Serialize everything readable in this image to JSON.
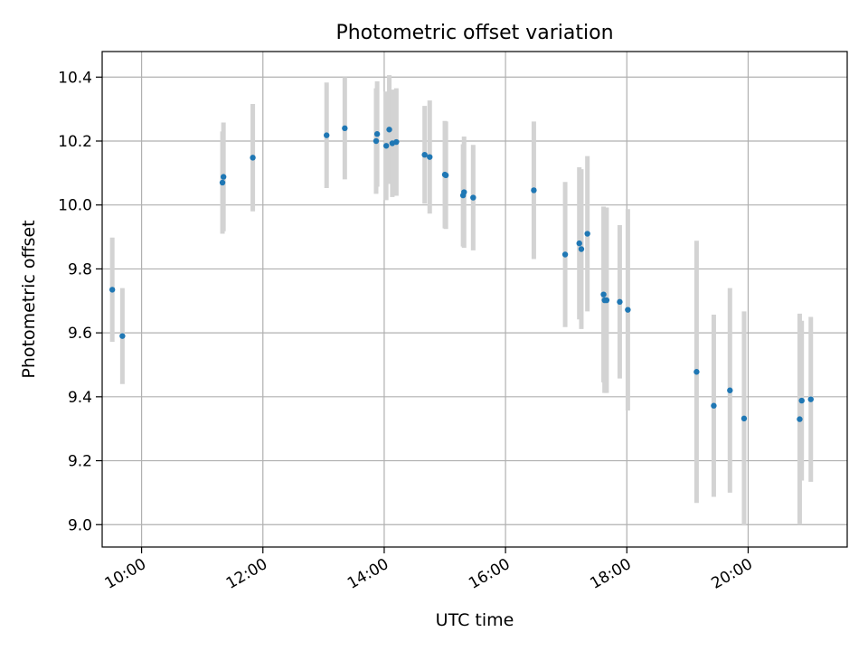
{
  "chart_data": {
    "type": "scatter",
    "title": "Photometric offset variation",
    "xlabel": "UTC time",
    "ylabel": "Photometric offset",
    "grid": true,
    "xlim": [
      "09:21",
      "21:38"
    ],
    "ylim": [
      8.93,
      10.48
    ],
    "x_ticks": [
      "10:00",
      "12:00",
      "14:00",
      "16:00",
      "18:00",
      "20:00"
    ],
    "y_ticks": [
      "9.0",
      "9.2",
      "9.4",
      "9.6",
      "9.8",
      "10.0",
      "10.2",
      "10.4"
    ],
    "point_color": "#1f77b4",
    "errorbar_color": "#d3d3d3",
    "series": [
      {
        "points": [
          {
            "x": "09:31",
            "y": 9.735,
            "err": 0.163
          },
          {
            "x": "09:41",
            "y": 9.59,
            "err": 0.15
          },
          {
            "x": "11:20",
            "y": 10.07,
            "err": 0.16
          },
          {
            "x": "11:21",
            "y": 10.088,
            "err": 0.17
          },
          {
            "x": "11:50",
            "y": 10.148,
            "err": 0.168
          },
          {
            "x": "13:03",
            "y": 10.218,
            "err": 0.165
          },
          {
            "x": "13:21",
            "y": 10.24,
            "err": 0.16
          },
          {
            "x": "13:52",
            "y": 10.2,
            "err": 0.165
          },
          {
            "x": "13:53",
            "y": 10.222,
            "err": 0.165
          },
          {
            "x": "14:02",
            "y": 10.185,
            "err": 0.17
          },
          {
            "x": "14:05",
            "y": 10.236,
            "err": 0.17
          },
          {
            "x": "14:08",
            "y": 10.193,
            "err": 0.168
          },
          {
            "x": "14:12",
            "y": 10.197,
            "err": 0.168
          },
          {
            "x": "14:40",
            "y": 10.157,
            "err": 0.153
          },
          {
            "x": "14:45",
            "y": 10.15,
            "err": 0.177
          },
          {
            "x": "15:00",
            "y": 10.095,
            "err": 0.168
          },
          {
            "x": "15:01",
            "y": 10.093,
            "err": 0.168
          },
          {
            "x": "15:18",
            "y": 10.03,
            "err": 0.16
          },
          {
            "x": "15:19",
            "y": 10.04,
            "err": 0.174
          },
          {
            "x": "15:28",
            "y": 10.023,
            "err": 0.165
          },
          {
            "x": "16:28",
            "y": 10.046,
            "err": 0.215
          },
          {
            "x": "16:59",
            "y": 9.845,
            "err": 0.227
          },
          {
            "x": "17:13",
            "y": 9.88,
            "err": 0.238
          },
          {
            "x": "17:15",
            "y": 9.862,
            "err": 0.25
          },
          {
            "x": "17:21",
            "y": 9.91,
            "err": 0.243
          },
          {
            "x": "17:37",
            "y": 9.72,
            "err": 0.275
          },
          {
            "x": "17:38",
            "y": 9.702,
            "err": 0.29
          },
          {
            "x": "17:40",
            "y": 9.702,
            "err": 0.29
          },
          {
            "x": "17:53",
            "y": 9.697,
            "err": 0.24
          },
          {
            "x": "18:01",
            "y": 9.672,
            "err": 0.315
          },
          {
            "x": "19:09",
            "y": 9.478,
            "err": 0.41
          },
          {
            "x": "19:26",
            "y": 9.372,
            "err": 0.285
          },
          {
            "x": "19:42",
            "y": 9.42,
            "err": 0.32
          },
          {
            "x": "19:56",
            "y": 9.332,
            "err": 0.335
          },
          {
            "x": "20:51",
            "y": 9.33,
            "err": 0.33
          },
          {
            "x": "20:53",
            "y": 9.388,
            "err": 0.25
          },
          {
            "x": "21:02",
            "y": 9.392,
            "err": 0.258
          }
        ]
      }
    ]
  }
}
